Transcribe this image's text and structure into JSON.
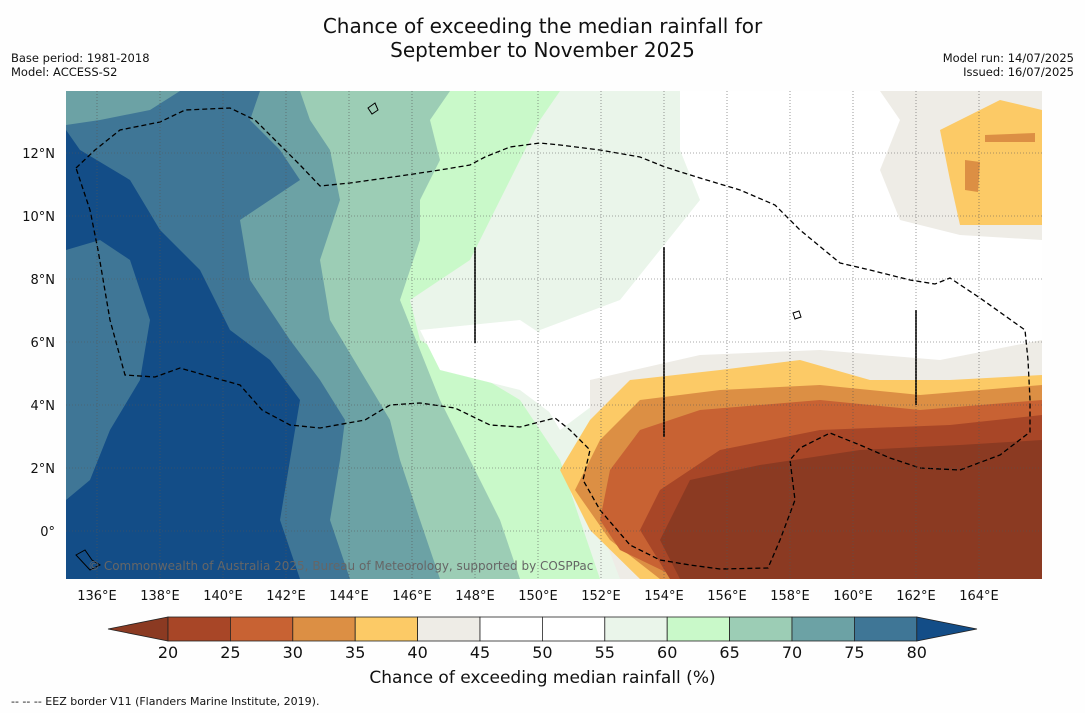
{
  "title_line1": "Chance of exceeding the median rainfall for",
  "title_line2": "September to November 2025",
  "meta_left": [
    "Base period: 1981-2018",
    "Model: ACCESS-S2"
  ],
  "meta_right": [
    "Model run: 14/07/2025",
    "Issued: 16/07/2025"
  ],
  "credit": "© Commonwealth of Australia 2025, Bureau of Meteorology, supported by COSPPac",
  "x_ticks": [
    "136°E",
    "138°E",
    "140°E",
    "142°E",
    "144°E",
    "146°E",
    "148°E",
    "150°E",
    "152°E",
    "154°E",
    "156°E",
    "158°E",
    "160°E",
    "162°E",
    "164°E"
  ],
  "y_ticks": [
    "12°N",
    "10°N",
    "8°N",
    "6°N",
    "4°N",
    "2°N",
    "0°"
  ],
  "colorbar": {
    "title": "Chance of exceeding median rainfall (%)",
    "labels": [
      "20",
      "25",
      "30",
      "35",
      "40",
      "45",
      "50",
      "55",
      "60",
      "65",
      "70",
      "75",
      "80"
    ],
    "under_color": "#8b3a22",
    "over_color": "#134d87",
    "colors": [
      "#a84627",
      "#c86233",
      "#dc8f44",
      "#fcca66",
      "#eeece6",
      "#ffffff",
      "#ffffff",
      "#eaf5ea",
      "#c9f9c9",
      "#9ccdb5",
      "#6ca2a5",
      "#3f7696"
    ]
  },
  "footnote": "--  --  -- EEZ border V11 (Flanders Marine Institute, 2019)."
}
